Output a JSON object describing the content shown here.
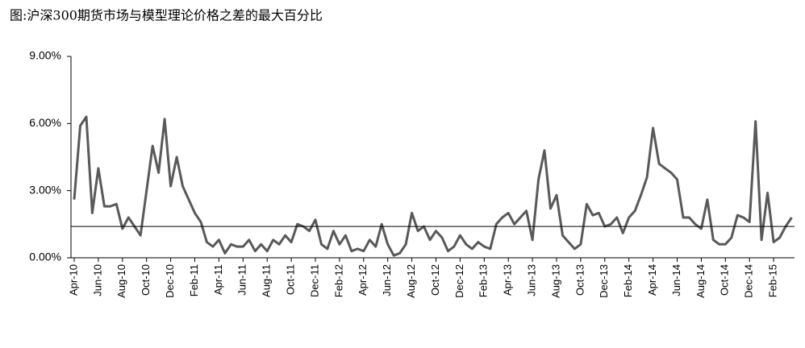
{
  "chart_data": {
    "type": "line",
    "title": "图:沪深300期货市场与模型理论价格之差的最大百分比",
    "categories": [
      "Apr-10",
      null,
      null,
      null,
      "Jun-10",
      null,
      null,
      null,
      "Aug-10",
      null,
      null,
      null,
      "Oct-10",
      null,
      null,
      null,
      "Dec-10",
      null,
      null,
      null,
      "Feb-11",
      null,
      null,
      null,
      "Apr-11",
      null,
      null,
      null,
      "Jun-11",
      null,
      null,
      null,
      "Aug-11",
      null,
      null,
      null,
      "Oct-11",
      null,
      null,
      null,
      "Dec-11",
      null,
      null,
      null,
      "Feb-12",
      null,
      null,
      null,
      "Apr-12",
      null,
      null,
      null,
      "Jun-12",
      null,
      null,
      null,
      "Aug-12",
      null,
      null,
      null,
      "Oct-12",
      null,
      null,
      null,
      "Dec-12",
      null,
      null,
      null,
      "Feb-13",
      null,
      null,
      null,
      "Apr-13",
      null,
      null,
      null,
      "Jun-13",
      null,
      null,
      null,
      "Aug-13",
      null,
      null,
      null,
      "Oct-13",
      null,
      null,
      null,
      "Dec-13",
      null,
      null,
      null,
      "Feb-14",
      null,
      null,
      null,
      "Apr-14",
      null,
      null,
      null,
      "Jun-14",
      null,
      null,
      null,
      "Aug-14",
      null,
      null,
      null,
      "Oct-14",
      null,
      null,
      null,
      "Dec-14",
      null,
      null,
      null,
      "Feb-15",
      null,
      null,
      null
    ],
    "series": [
      {
        "color": "#595959",
        "values": [
          2.6,
          5.9,
          6.3,
          2.0,
          4.0,
          2.3,
          2.3,
          2.4,
          1.3,
          1.8,
          1.4,
          1.0,
          3.0,
          5.0,
          3.8,
          6.2,
          3.2,
          4.5,
          3.2,
          2.6,
          2.0,
          1.6,
          0.7,
          0.5,
          0.8,
          0.2,
          0.6,
          0.5,
          0.5,
          0.8,
          0.3,
          0.6,
          0.3,
          0.8,
          0.6,
          1.0,
          0.7,
          1.5,
          1.4,
          1.2,
          1.7,
          0.6,
          0.4,
          1.2,
          0.6,
          1.0,
          0.3,
          0.4,
          0.3,
          0.8,
          0.5,
          1.5,
          0.6,
          0.1,
          0.2,
          0.6,
          2.0,
          1.2,
          1.4,
          0.8,
          1.2,
          0.9,
          0.3,
          0.5,
          1.0,
          0.6,
          0.4,
          0.7,
          0.5,
          0.4,
          1.5,
          1.8,
          2.0,
          1.5,
          1.8,
          2.1,
          0.8,
          3.5,
          4.8,
          2.2,
          2.8,
          1.0,
          0.7,
          0.4,
          0.6,
          2.4,
          1.9,
          2.0,
          1.4,
          1.5,
          1.8,
          1.1,
          1.8,
          2.1,
          2.8,
          3.6,
          5.8,
          4.2,
          4.0,
          3.8,
          3.5,
          1.8,
          1.8,
          1.5,
          1.3,
          2.6,
          0.8,
          0.6,
          0.6,
          0.9,
          1.9,
          1.8,
          1.6,
          6.1,
          0.8,
          2.9,
          0.7,
          0.9,
          1.4,
          1.8
        ]
      }
    ],
    "reference_line": 1.4,
    "ylim": [
      0,
      9
    ],
    "yticks": [
      {
        "value": 0,
        "label": "0.00%"
      },
      {
        "value": 3,
        "label": "3.00%"
      },
      {
        "value": 6,
        "label": "6.00%"
      },
      {
        "value": 9,
        "label": "9.00%"
      }
    ]
  }
}
